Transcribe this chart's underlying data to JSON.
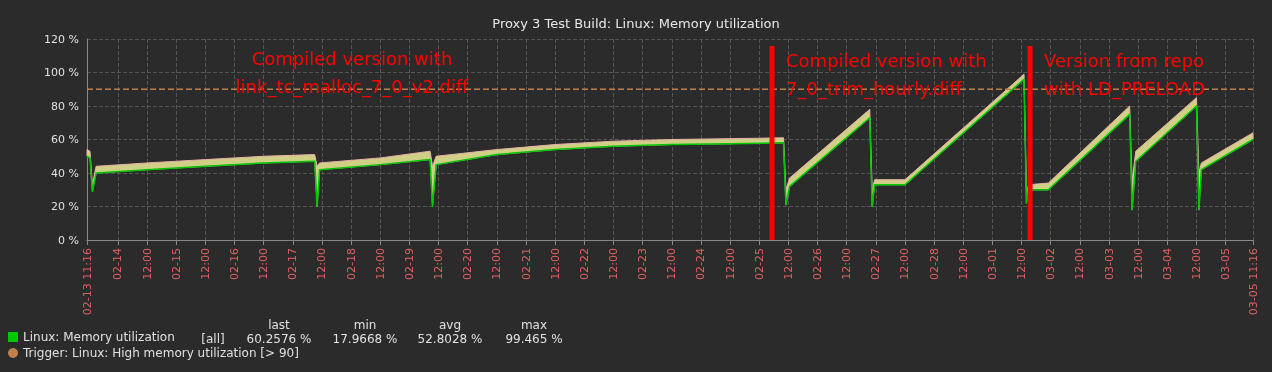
{
  "chart_data": {
    "type": "line",
    "title": "Proxy 3 Test Build: Linux: Memory utilization",
    "x": [
      "--02-13T11:16",
      "--02-13T12:30",
      "--02-13T13:30",
      "--02-13T15:00",
      "--02-14T12:00",
      "--02-15T12:00",
      "--02-16T12:00",
      "--02-17T09:00",
      "--02-17T10:00",
      "--02-17T11:00",
      "--02-18T12:00",
      "--02-19T08:30",
      "--02-19T09:30",
      "--02-19T11:00",
      "--02-20T12:00",
      "--02-21T12:00",
      "--02-22T12:00",
      "--02-23T12:00",
      "--02-24T12:00",
      "--02-25T10:00",
      "--02-25T11:00",
      "--02-25T12:30",
      "--02-26T21:30",
      "--02-26T22:30",
      "--02-26T23:30",
      "--02-27T12:00",
      "--03-01T13:00",
      "--03-01T14:00",
      "--03-01T15:00",
      "--03-01T23:00",
      "--03-03T08:30",
      "--03-03T09:30",
      "--03-03T11:00",
      "--03-04T12:00",
      "--03-04T13:00",
      "--03-04T14:00",
      "--03-05T11:16"
    ],
    "series": [
      {
        "name": "Linux: Memory utilization",
        "color": "#00c800",
        "values": [
          50,
          49,
          29,
          40,
          42,
          44,
          46,
          47,
          20,
          42,
          45,
          48,
          20,
          45,
          51,
          54,
          56,
          57,
          57.5,
          58,
          21,
          32,
          73,
          20,
          33,
          33,
          96,
          22,
          30,
          30,
          75,
          18,
          47,
          80,
          18,
          42,
          60
        ],
        "lower": [
          50,
          49,
          29,
          40,
          42,
          44,
          46,
          47,
          20,
          42,
          45,
          48,
          20,
          45,
          51,
          54,
          56,
          57,
          57.5,
          58,
          21,
          32,
          73,
          20,
          33,
          33,
          96,
          22,
          30,
          30,
          75,
          18,
          47,
          80,
          18,
          42,
          60
        ],
        "upper": [
          54,
          53,
          33,
          44,
          46,
          48,
          50,
          51,
          44,
          46,
          49,
          53,
          44,
          50,
          54,
          57,
          59,
          60,
          60.5,
          61,
          30,
          37,
          78,
          30,
          36,
          36,
          99,
          30,
          33,
          34,
          80,
          35,
          53,
          85,
          40,
          46,
          64
        ]
      }
    ],
    "xlim": [
      "--02-13T11:16",
      "--03-05T11:16"
    ],
    "xticks": [
      {
        "value": "--02-13T11:16",
        "label": "02-13 11:16"
      },
      {
        "value": "--02-14T00:00",
        "label": "02-14"
      },
      {
        "value": "--02-14T12:00",
        "label": "12:00"
      },
      {
        "value": "--02-15T00:00",
        "label": "02-15"
      },
      {
        "value": "--02-15T12:00",
        "label": "12:00"
      },
      {
        "value": "--02-16T00:00",
        "label": "02-16"
      },
      {
        "value": "--02-16T12:00",
        "label": "12:00"
      },
      {
        "value": "--02-17T00:00",
        "label": "02-17"
      },
      {
        "value": "--02-17T12:00",
        "label": "12:00"
      },
      {
        "value": "--02-18T00:00",
        "label": "02-18"
      },
      {
        "value": "--02-18T12:00",
        "label": "12:00"
      },
      {
        "value": "--02-19T00:00",
        "label": "02-19"
      },
      {
        "value": "--02-19T12:00",
        "label": "12:00"
      },
      {
        "value": "--02-20T00:00",
        "label": "02-20"
      },
      {
        "value": "--02-20T12:00",
        "label": "12:00"
      },
      {
        "value": "--02-21T00:00",
        "label": "02-21"
      },
      {
        "value": "--02-21T12:00",
        "label": "12:00"
      },
      {
        "value": "--02-22T00:00",
        "label": "02-22"
      },
      {
        "value": "--02-22T12:00",
        "label": "12:00"
      },
      {
        "value": "--02-23T00:00",
        "label": "02-23"
      },
      {
        "value": "--02-23T12:00",
        "label": "12:00"
      },
      {
        "value": "--02-24T00:00",
        "label": "02-24"
      },
      {
        "value": "--02-24T12:00",
        "label": "12:00"
      },
      {
        "value": "--02-25T00:00",
        "label": "02-25"
      },
      {
        "value": "--02-25T12:00",
        "label": "12:00"
      },
      {
        "value": "--02-26T00:00",
        "label": "02-26"
      },
      {
        "value": "--02-26T12:00",
        "label": "12:00"
      },
      {
        "value": "--02-27T00:00",
        "label": "02-27"
      },
      {
        "value": "--02-27T12:00",
        "label": "12:00"
      },
      {
        "value": "--02-28T00:00",
        "label": "02-28"
      },
      {
        "value": "--02-28T12:00",
        "label": "12:00"
      },
      {
        "value": "--03-01T00:00",
        "label": "03-01"
      },
      {
        "value": "--03-01T12:00",
        "label": "12:00"
      },
      {
        "value": "--03-02T00:00",
        "label": "03-02"
      },
      {
        "value": "--03-02T12:00",
        "label": "12:00"
      },
      {
        "value": "--03-03T00:00",
        "label": "03-03"
      },
      {
        "value": "--03-03T12:00",
        "label": "12:00"
      },
      {
        "value": "--03-04T00:00",
        "label": "03-04"
      },
      {
        "value": "--03-04T12:00",
        "label": "12:00"
      },
      {
        "value": "--03-05T00:00",
        "label": "03-05"
      },
      {
        "value": "--03-05T11:16",
        "label": "03-05 11:16"
      }
    ],
    "ylim": [
      0,
      120
    ],
    "yticks": [
      {
        "value": 0,
        "label": "0 %"
      },
      {
        "value": 20,
        "label": "20 %"
      },
      {
        "value": 40,
        "label": "40 %"
      },
      {
        "value": 60,
        "label": "60 %"
      },
      {
        "value": 80,
        "label": "80 %"
      },
      {
        "value": 100,
        "label": "100 %"
      },
      {
        "value": 120,
        "label": "120 %"
      }
    ],
    "grid": true,
    "legend": "bottom left",
    "marker": "none",
    "line_style": "solid",
    "ref_lines": [
      {
        "axis": "y",
        "value": 90,
        "label": "Trigger: Linux: High memory utilization [> 90]",
        "color": "#c0804a",
        "line_style": "dashed"
      },
      {
        "axis": "x",
        "value": "--02-25T05:16",
        "label": "Compiled version with\n7_0_trim_hourly.diff",
        "color": "#ff0000",
        "line_style": "solid"
      },
      {
        "axis": "x",
        "value": "--03-01T15:30",
        "label": "Version from repo\nwith LD_PRELOAD",
        "color": "#ff0000",
        "line_style": "solid"
      }
    ],
    "annotations": [
      "Compiled version with\nlink_tc_malloc_7_0_v2.diff",
      "[all]",
      "last",
      "min",
      "avg",
      "max",
      "60.2576 %",
      "17.9668 %",
      "52.8028 %",
      "99.465 %"
    ]
  }
}
